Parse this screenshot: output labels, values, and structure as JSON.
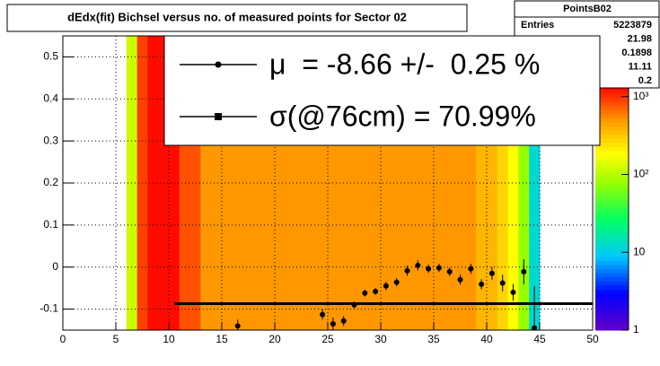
{
  "chart_data": {
    "type": "heatmap",
    "title": "dEdx(fit) Bichsel versus no. of measured points for Sector 02",
    "xlim": [
      0,
      50
    ],
    "ylim": [
      -0.15,
      0.55
    ],
    "xticks": [
      0,
      5,
      10,
      15,
      20,
      25,
      30,
      35,
      40,
      45,
      50
    ],
    "yticks": [
      -0.1,
      0,
      0.1,
      0.2,
      0.3,
      0.4,
      0.5
    ],
    "grid": true,
    "xbins": [
      6,
      7,
      8,
      9,
      10,
      11,
      12,
      13,
      14,
      15,
      16,
      17,
      18,
      19,
      20,
      21,
      22,
      23,
      24,
      25,
      26,
      27,
      28,
      29,
      30,
      31,
      32,
      33,
      34,
      35,
      36,
      37,
      38,
      39,
      40,
      41,
      42,
      43,
      44,
      45
    ],
    "counts": [
      120,
      900,
      1300,
      1300,
      1300,
      800,
      800,
      500,
      500,
      500,
      500,
      500,
      500,
      500,
      500,
      500,
      500,
      500,
      500,
      500,
      500,
      500,
      500,
      500,
      500,
      500,
      500,
      500,
      500,
      500,
      500,
      500,
      500,
      380,
      380,
      280,
      185,
      78,
      12
    ],
    "zlim": [
      1,
      1400
    ],
    "log_z": true,
    "zticks": [
      1,
      10,
      {
        "value": 100,
        "label": "10²"
      },
      {
        "value": 1000,
        "label": "10³"
      }
    ],
    "profile": {
      "x": [
        16.5,
        24.5,
        25.5,
        26.5,
        27.5,
        28.5,
        29.5,
        30.5,
        31.5,
        32.5,
        33.5,
        34.5,
        35.5,
        36.5,
        37.5,
        38.5,
        39.5,
        40.5,
        41.5,
        42.5,
        43.5,
        44.5
      ],
      "y": [
        -0.14,
        -0.113,
        -0.135,
        -0.128,
        -0.09,
        -0.062,
        -0.058,
        -0.045,
        -0.036,
        -0.009,
        0.004,
        -0.004,
        -0.002,
        -0.011,
        -0.03,
        -0.004,
        -0.041,
        -0.015,
        -0.038,
        -0.06,
        -0.011,
        -0.145
      ],
      "errors": [
        0.015,
        0.012,
        0.015,
        0.012,
        0.008,
        0.008,
        0.008,
        0.01,
        0.01,
        0.012,
        0.012,
        0.01,
        0.01,
        0.01,
        0.012,
        0.012,
        0.012,
        0.015,
        0.02,
        0.02,
        0.03,
        0.1
      ]
    },
    "fit_line": {
      "x": [
        10.5,
        50
      ],
      "y": -0.087
    },
    "legend": [
      {
        "label": "μ  = -8.66 +/-  0.25 %",
        "marker": "circle"
      },
      {
        "label": "σ(@76cm) = 70.99%",
        "marker": "square"
      }
    ],
    "stats": {
      "title": "PointsB02",
      "entries_label": "Entries",
      "values": [
        "5223879",
        "21.98",
        "0.1898",
        "11.11",
        "0.2"
      ]
    }
  }
}
